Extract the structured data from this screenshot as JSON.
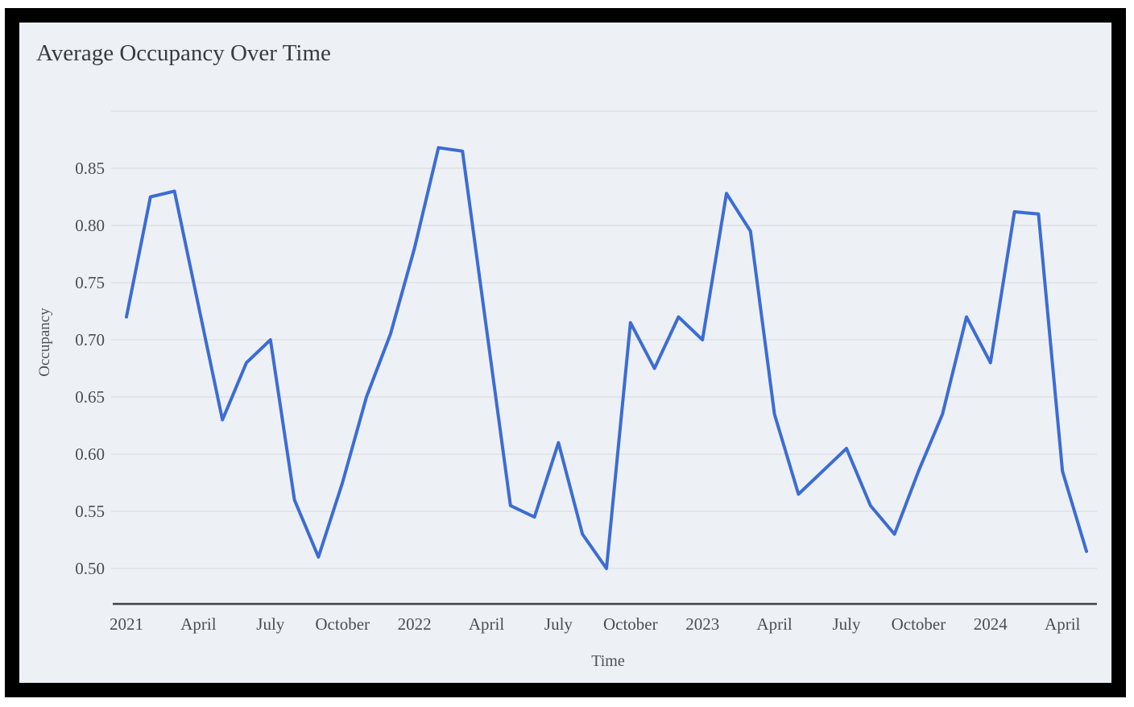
{
  "chart_data": {
    "type": "line",
    "title": "Average Occupancy Over Time",
    "xlabel": "Time",
    "ylabel": "Occupancy",
    "x_months": [
      "Jan 2021",
      "Feb 2021",
      "Mar 2021",
      "Apr 2021",
      "May 2021",
      "Jun 2021",
      "Jul 2021",
      "Aug 2021",
      "Sep 2021",
      "Oct 2021",
      "Nov 2021",
      "Dec 2021",
      "Jan 2022",
      "Feb 2022",
      "Mar 2022",
      "Apr 2022",
      "May 2022",
      "Jun 2022",
      "Jul 2022",
      "Aug 2022",
      "Sep 2022",
      "Oct 2022",
      "Nov 2022",
      "Dec 2022",
      "Jan 2023",
      "Feb 2023",
      "Mar 2023",
      "Apr 2023",
      "May 2023",
      "Jun 2023",
      "Jul 2023",
      "Aug 2023",
      "Sep 2023",
      "Oct 2023",
      "Nov 2023",
      "Dec 2023",
      "Jan 2024",
      "Feb 2024",
      "Mar 2024",
      "Apr 2024",
      "May 2024"
    ],
    "series": [
      {
        "name": "Average Occupancy",
        "values": [
          0.72,
          0.825,
          0.83,
          0.73,
          0.63,
          0.68,
          0.7,
          0.56,
          0.51,
          0.575,
          0.65,
          0.705,
          0.78,
          0.868,
          0.865,
          0.71,
          0.555,
          0.545,
          0.61,
          0.53,
          0.5,
          0.715,
          0.675,
          0.72,
          0.7,
          0.828,
          0.795,
          0.635,
          0.565,
          0.585,
          0.605,
          0.555,
          0.53,
          0.585,
          0.635,
          0.72,
          0.68,
          0.812,
          0.81,
          0.585,
          0.515
        ]
      }
    ],
    "x_tick_month_indices": [
      0,
      3,
      6,
      9,
      12,
      15,
      18,
      21,
      24,
      27,
      30,
      33,
      36,
      39
    ],
    "x_tick_labels": [
      "2021",
      "April",
      "July",
      "October",
      "2022",
      "April",
      "July",
      "October",
      "2023",
      "April",
      "July",
      "October",
      "2024",
      "April"
    ],
    "y_ticks": [
      0.5,
      0.55,
      0.6,
      0.65,
      0.7,
      0.75,
      0.8,
      0.85
    ],
    "y_gridlines": [
      0.5,
      0.55,
      0.6,
      0.65,
      0.7,
      0.75,
      0.8,
      0.85,
      0.9
    ],
    "ylim": [
      0.47,
      0.9
    ],
    "grid": true,
    "legend": "none",
    "colors": {
      "line": "#3c6cd4",
      "gridline": "#d7d9db",
      "axis_line": "#3f4245",
      "tick_label": "#4a4e53",
      "panel_background": "#edf1f6",
      "frame": "#000000"
    }
  }
}
